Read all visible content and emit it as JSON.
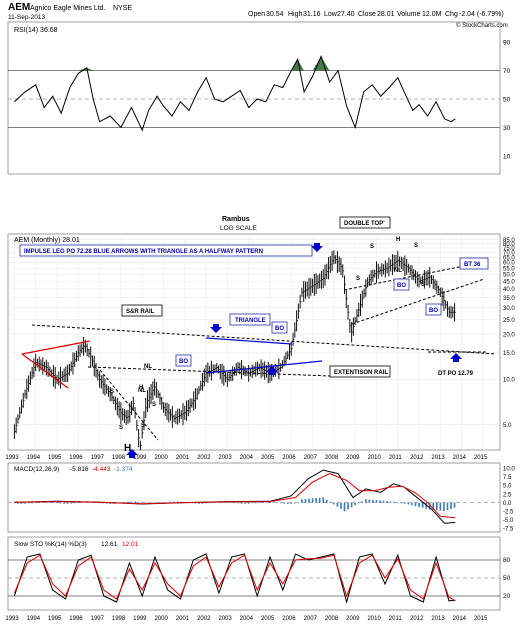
{
  "header": {
    "symbol": "AEM",
    "company": "Agnico Eagle Mines Ltd.",
    "exchange": "NYSE",
    "date": "11-Sep-2013",
    "open_label": "Open",
    "open": "30.54",
    "high_label": "High",
    "high": "31.16",
    "low_label": "Low",
    "low": "27.40",
    "close_label": "Close",
    "close": "28.01",
    "volume_label": "Volume",
    "volume": "12.0M",
    "chg_label": "Chg",
    "chg": "-2.04 (-6.79%)",
    "watermark": "© StockCharts.com"
  },
  "chart_data": [
    {
      "type": "line",
      "title": "RSI(14) 36.68",
      "y_ticks": [
        "90",
        "70",
        "50",
        "30",
        "10"
      ],
      "ylim": [
        0,
        100
      ],
      "reference_lines": [
        70,
        50,
        30
      ],
      "series": [
        {
          "x": [
            1993.0,
            1993.5,
            1994.0,
            1994.4,
            1994.8,
            1995.2,
            1995.6,
            1996.0,
            1996.4,
            1996.7,
            1997.0,
            1997.5,
            1998.0,
            1998.5,
            1999.0,
            1999.3,
            1999.7,
            2000.0,
            2000.4,
            2000.8,
            2001.2,
            2001.6,
            2002.0,
            2002.4,
            2002.8,
            2003.2,
            2003.6,
            2004.0,
            2004.4,
            2004.8,
            2005.2,
            2005.6,
            2006.0,
            2006.3,
            2006.6,
            2007.0,
            2007.4,
            2007.8,
            2008.2,
            2008.6,
            2009.0,
            2009.4,
            2009.8,
            2010.2,
            2010.6,
            2011.0,
            2011.3,
            2011.7,
            2012.0,
            2012.4,
            2012.8,
            2013.2,
            2013.5,
            2013.7
          ],
          "y": [
            48,
            55,
            60,
            44,
            52,
            40,
            58,
            68,
            72,
            50,
            34,
            38,
            30,
            44,
            28,
            42,
            52,
            45,
            38,
            48,
            42,
            55,
            65,
            50,
            48,
            52,
            56,
            44,
            50,
            48,
            60,
            58,
            70,
            78,
            55,
            66,
            80,
            62,
            70,
            45,
            30,
            55,
            60,
            52,
            58,
            65,
            55,
            42,
            46,
            38,
            48,
            36,
            34,
            36
          ]
        }
      ]
    },
    {
      "type": "bar",
      "title": "AEM (Monthly) 28.01",
      "log_scale": true,
      "x_tick_labels": [
        "1993",
        "1994",
        "1995",
        "1996",
        "1997",
        "1998",
        "1999",
        "2000",
        "2001",
        "2002",
        "2003",
        "2004",
        "2005",
        "2006",
        "2007",
        "2008",
        "2009",
        "2010",
        "2011",
        "2012",
        "2013",
        "2014",
        "2015"
      ],
      "y_tick_labels": [
        "85.0",
        "80.0",
        "75.0",
        "70.0",
        "65.0",
        "60.0",
        "55.0",
        "50.0",
        "45.0",
        "40.0",
        "35.0",
        "30.0",
        "25.0",
        "20.0",
        "15.0",
        "10.0",
        "5.0"
      ],
      "y_ticks": [
        85,
        80,
        75,
        70,
        65,
        60,
        55,
        50,
        45,
        40,
        35,
        30,
        25,
        20,
        15,
        10,
        5
      ],
      "ylim": [
        3.5,
        90
      ],
      "ohlc_approx": {
        "x": [
          1993.0,
          1993.5,
          1994.0,
          1994.5,
          1995.0,
          1995.5,
          1996.0,
          1996.3,
          1996.6,
          1997.0,
          1997.5,
          1998.0,
          1998.3,
          1998.6,
          1998.9,
          1999.2,
          1999.6,
          2000.0,
          2000.5,
          2001.0,
          2001.5,
          2002.0,
          2002.5,
          2003.0,
          2003.5,
          2004.0,
          2004.5,
          2005.0,
          2005.5,
          2006.0,
          2006.5,
          2007.0,
          2007.5,
          2008.0,
          2008.4,
          2008.8,
          2009.2,
          2009.6,
          2010.0,
          2010.5,
          2011.0,
          2011.5,
          2012.0,
          2012.5,
          2013.0,
          2013.4,
          2013.7
        ],
        "y": [
          4.5,
          8,
          13,
          12,
          10,
          11,
          15,
          17,
          14,
          10,
          8,
          6,
          5.5,
          7,
          3.5,
          7,
          9,
          6.5,
          5.5,
          6,
          7.5,
          11,
          12,
          10,
          12,
          11,
          12,
          11,
          12,
          16,
          38,
          42,
          47,
          65,
          55,
          20,
          30,
          45,
          52,
          55,
          62,
          55,
          45,
          48,
          38,
          28,
          28
        ]
      },
      "annotations": [
        "Rambus",
        "LOG SCALE",
        "IMPULSE LEG PO 72.28 BLUE ARROWS WITH TRIANGLE AS A HALFWAY PATTERN",
        "DOUBLE TOP'",
        "S&R RAIL",
        "TRIANGLE",
        "BO",
        "BO",
        "BO",
        "BO",
        "BT 36",
        "EXTENTISON RAIL",
        "DT PO 12.79",
        "NL",
        "NL",
        "NL",
        "S",
        "S",
        "S",
        "S",
        "S",
        "S",
        "S",
        "S",
        "H",
        "H",
        "H"
      ]
    },
    {
      "type": "line",
      "title": "MACD(12,26,9) -5.816, -4.443, -1.374",
      "legend": [
        "MACD(12,26,9)",
        "-5.816",
        "-4.443",
        "-1.374"
      ],
      "y_ticks": [
        "10.0",
        "7.5",
        "5.0",
        "2.5",
        "0.0",
        "-2.5",
        "-5.0",
        "-7.5"
      ],
      "ylim": [
        -8,
        11
      ],
      "series": [
        {
          "name": "MACD",
          "color": "#000000",
          "x": [
            1993,
            1995,
            1997,
            1999,
            2001,
            2003,
            2005,
            2006,
            2006.8,
            2007.5,
            2008.2,
            2008.9,
            2009.5,
            2010.2,
            2010.8,
            2011.3,
            2012.0,
            2012.6,
            2013.2,
            2013.7
          ],
          "y": [
            0.1,
            0.4,
            0.1,
            -0.4,
            0.0,
            0.3,
            0.4,
            2.0,
            7.0,
            9.5,
            8.5,
            1.5,
            4.0,
            3.0,
            5.5,
            4.5,
            1.0,
            -2.0,
            -6.0,
            -5.8
          ]
        },
        {
          "name": "Signal",
          "color": "#dd0000",
          "x": [
            1993,
            1995,
            1997,
            1999,
            2001,
            2003,
            2005,
            2006.2,
            2007.0,
            2007.8,
            2008.6,
            2009.2,
            2009.9,
            2010.6,
            2011.2,
            2011.8,
            2012.4,
            2013.0,
            2013.7
          ],
          "y": [
            0.1,
            0.3,
            0.1,
            -0.3,
            0.0,
            0.2,
            0.3,
            1.5,
            6.0,
            8.5,
            6.5,
            3.5,
            3.5,
            4.5,
            4.8,
            3.0,
            0.0,
            -4.0,
            -4.4
          ]
        },
        {
          "name": "Histogram",
          "color": "#3a78b8",
          "x": [
            2006.5,
            2007.5,
            2008.5,
            2009.5,
            2010.5,
            2011.5,
            2012.5,
            2013.2,
            2013.7
          ],
          "y": [
            1.0,
            1.5,
            -2.5,
            1.0,
            0.5,
            -0.5,
            -2.0,
            -2.5,
            -1.4
          ]
        }
      ]
    },
    {
      "type": "line",
      "title": "Slow STO %K(14) %D(3) 12.61, 12.01",
      "legend": [
        "Slow STO %K(14) %D(3)",
        "12.61",
        "12.01"
      ],
      "y_ticks": [
        "80",
        "50",
        "20"
      ],
      "ylim": [
        0,
        100
      ],
      "series": [
        {
          "name": "%K",
          "color": "#000000",
          "x": [
            1993,
            1993.6,
            1994.2,
            1994.8,
            1995.4,
            1996.0,
            1996.6,
            1997.2,
            1997.8,
            1998.4,
            1999.0,
            1999.6,
            2000.2,
            2000.8,
            2001.4,
            2002.0,
            2002.6,
            2003.2,
            2003.8,
            2004.4,
            2005.0,
            2005.6,
            2006.2,
            2006.8,
            2007.4,
            2008.0,
            2008.6,
            2009.2,
            2009.8,
            2010.4,
            2011.0,
            2011.6,
            2012.2,
            2012.8,
            2013.4,
            2013.7
          ],
          "y": [
            20,
            85,
            90,
            30,
            15,
            80,
            88,
            20,
            10,
            75,
            20,
            85,
            30,
            15,
            80,
            90,
            25,
            85,
            90,
            20,
            85,
            30,
            90,
            80,
            85,
            90,
            10,
            85,
            90,
            40,
            88,
            20,
            10,
            85,
            12,
            13
          ]
        },
        {
          "name": "%D",
          "color": "#dd0000",
          "x": [
            1993,
            1993.6,
            1994.2,
            1994.8,
            1995.4,
            1996.0,
            1996.6,
            1997.2,
            1997.8,
            1998.4,
            1999.0,
            1999.6,
            2000.2,
            2000.8,
            2001.4,
            2002.0,
            2002.6,
            2003.2,
            2003.8,
            2004.4,
            2005.0,
            2005.6,
            2006.2,
            2006.8,
            2007.4,
            2008.0,
            2008.6,
            2009.2,
            2009.8,
            2010.4,
            2011.0,
            2011.6,
            2012.2,
            2012.8,
            2013.4,
            2013.7
          ],
          "y": [
            25,
            75,
            88,
            40,
            20,
            70,
            85,
            30,
            15,
            65,
            30,
            75,
            40,
            20,
            70,
            85,
            35,
            75,
            88,
            30,
            75,
            40,
            80,
            82,
            83,
            88,
            20,
            75,
            88,
            50,
            82,
            30,
            15,
            75,
            18,
            12
          ]
        }
      ]
    }
  ],
  "colors": {
    "rsi_fill": "#4a7a4a",
    "trend_black": "#000000",
    "trend_red": "#dd0000",
    "trend_blue": "#0000cc",
    "macd_hist": "#3a78b8",
    "annotation_border": "#2233aa"
  }
}
